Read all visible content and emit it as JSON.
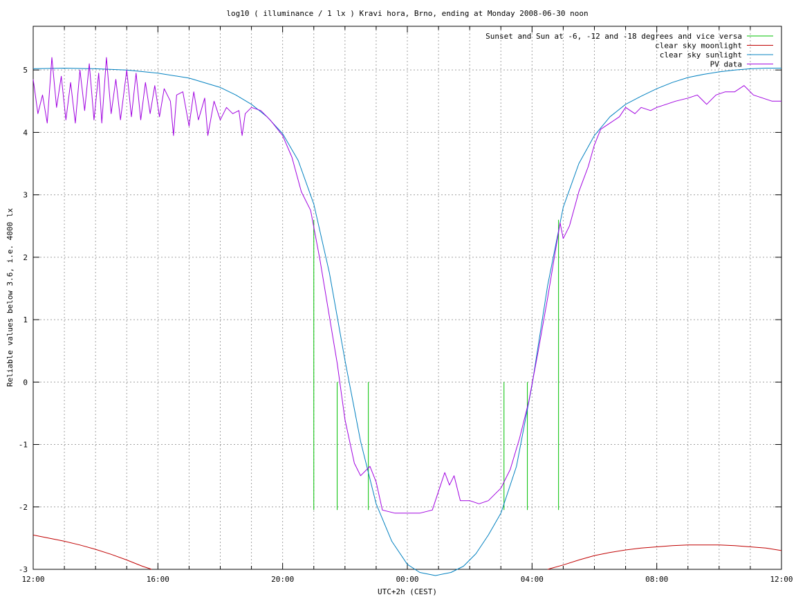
{
  "chart_data": {
    "type": "line",
    "title": "log10 ( illuminance / 1 lx ) Kravi hora, Brno, ending at Monday 2008-06-30 noon",
    "xlabel": "UTC+2h (CEST)",
    "ylabel": "Reliable values below 3.6, i.e. 4000 lx",
    "xlim": [
      0,
      24
    ],
    "ylim": [
      -3,
      5.7
    ],
    "grid": true,
    "legend_position": "top-right",
    "x_ticks": [
      {
        "x": 0,
        "label": "12:00"
      },
      {
        "x": 4,
        "label": "16:00"
      },
      {
        "x": 8,
        "label": "20:00"
      },
      {
        "x": 12,
        "label": "00:00"
      },
      {
        "x": 16,
        "label": "04:00"
      },
      {
        "x": 20,
        "label": "08:00"
      },
      {
        "x": 24,
        "label": "12:00"
      }
    ],
    "x_minor_ticks": [
      1,
      2,
      3,
      5,
      6,
      7,
      9,
      10,
      11,
      13,
      14,
      15,
      17,
      18,
      19,
      21,
      22,
      23
    ],
    "y_ticks": [
      {
        "y": -3,
        "label": "-3"
      },
      {
        "y": -2,
        "label": "-2"
      },
      {
        "y": -1,
        "label": "-1"
      },
      {
        "y": 0,
        "label": "0"
      },
      {
        "y": 1,
        "label": "1"
      },
      {
        "y": 2,
        "label": "2"
      },
      {
        "y": 3,
        "label": "3"
      },
      {
        "y": 4,
        "label": "4"
      },
      {
        "y": 5,
        "label": "5"
      }
    ],
    "series": [
      {
        "name": "Sunset and Sun at -6, -12 and -18 degrees and vice versa",
        "color": "#00c000",
        "style": "impulses",
        "points": [
          [
            9.0,
            2.6
          ],
          [
            9.75,
            0.0
          ],
          [
            10.75,
            0.0
          ],
          [
            15.1,
            0.0
          ],
          [
            15.85,
            0.0
          ],
          [
            16.85,
            2.6
          ]
        ]
      },
      {
        "name": "clear sky moonlight",
        "color": "#c00000",
        "style": "line",
        "segments": [
          [
            [
              0.0,
              -2.45
            ],
            [
              0.5,
              -2.5
            ],
            [
              1.0,
              -2.55
            ],
            [
              1.5,
              -2.61
            ],
            [
              2.0,
              -2.68
            ],
            [
              2.5,
              -2.76
            ],
            [
              3.0,
              -2.85
            ],
            [
              3.5,
              -2.95
            ],
            [
              3.8,
              -3.0
            ]
          ],
          [
            [
              16.5,
              -3.0
            ],
            [
              17.0,
              -2.93
            ],
            [
              17.5,
              -2.85
            ],
            [
              18.0,
              -2.78
            ],
            [
              18.5,
              -2.73
            ],
            [
              19.0,
              -2.69
            ],
            [
              19.5,
              -2.66
            ],
            [
              20.0,
              -2.64
            ],
            [
              20.5,
              -2.62
            ],
            [
              21.0,
              -2.61
            ],
            [
              21.5,
              -2.61
            ],
            [
              22.0,
              -2.61
            ],
            [
              22.5,
              -2.62
            ],
            [
              23.0,
              -2.64
            ],
            [
              23.5,
              -2.66
            ],
            [
              24.0,
              -2.7
            ]
          ]
        ]
      },
      {
        "name": "clear sky sunlight",
        "color": "#0080c0",
        "style": "line",
        "points": [
          [
            0.0,
            5.02
          ],
          [
            1.0,
            5.03
          ],
          [
            2.0,
            5.02
          ],
          [
            3.0,
            5.0
          ],
          [
            4.0,
            4.95
          ],
          [
            5.0,
            4.87
          ],
          [
            6.0,
            4.72
          ],
          [
            6.5,
            4.6
          ],
          [
            7.0,
            4.45
          ],
          [
            7.5,
            4.25
          ],
          [
            8.0,
            3.98
          ],
          [
            8.5,
            3.55
          ],
          [
            9.0,
            2.85
          ],
          [
            9.5,
            1.75
          ],
          [
            10.0,
            0.35
          ],
          [
            10.5,
            -0.95
          ],
          [
            11.0,
            -1.95
          ],
          [
            11.5,
            -2.55
          ],
          [
            12.0,
            -2.92
          ],
          [
            12.4,
            -3.05
          ],
          [
            12.9,
            -3.1
          ],
          [
            13.4,
            -3.05
          ],
          [
            13.8,
            -2.95
          ],
          [
            14.2,
            -2.75
          ],
          [
            14.6,
            -2.45
          ],
          [
            15.0,
            -2.1
          ],
          [
            15.5,
            -1.35
          ],
          [
            16.0,
            -0.05
          ],
          [
            16.5,
            1.55
          ],
          [
            17.0,
            2.8
          ],
          [
            17.5,
            3.5
          ],
          [
            18.0,
            3.95
          ],
          [
            18.5,
            4.25
          ],
          [
            19.0,
            4.45
          ],
          [
            19.5,
            4.58
          ],
          [
            20.0,
            4.7
          ],
          [
            20.5,
            4.8
          ],
          [
            21.0,
            4.88
          ],
          [
            21.5,
            4.93
          ],
          [
            22.0,
            4.97
          ],
          [
            22.5,
            5.0
          ],
          [
            23.0,
            5.02
          ],
          [
            23.5,
            5.03
          ],
          [
            24.0,
            5.03
          ]
        ]
      },
      {
        "name": "PV data",
        "color": "#a000e0",
        "style": "line",
        "points": [
          [
            0.0,
            4.85
          ],
          [
            0.15,
            4.3
          ],
          [
            0.3,
            4.6
          ],
          [
            0.45,
            4.15
          ],
          [
            0.6,
            5.2
          ],
          [
            0.75,
            4.4
          ],
          [
            0.9,
            4.9
          ],
          [
            1.05,
            4.2
          ],
          [
            1.2,
            4.8
          ],
          [
            1.35,
            4.15
          ],
          [
            1.5,
            5.0
          ],
          [
            1.65,
            4.35
          ],
          [
            1.8,
            5.1
          ],
          [
            1.95,
            4.2
          ],
          [
            2.1,
            4.95
          ],
          [
            2.2,
            4.15
          ],
          [
            2.35,
            5.2
          ],
          [
            2.5,
            4.3
          ],
          [
            2.65,
            4.85
          ],
          [
            2.8,
            4.2
          ],
          [
            3.0,
            5.0
          ],
          [
            3.15,
            4.25
          ],
          [
            3.3,
            4.95
          ],
          [
            3.45,
            4.2
          ],
          [
            3.6,
            4.8
          ],
          [
            3.75,
            4.3
          ],
          [
            3.9,
            4.75
          ],
          [
            4.05,
            4.25
          ],
          [
            4.2,
            4.7
          ],
          [
            4.4,
            4.5
          ],
          [
            4.5,
            3.95
          ],
          [
            4.6,
            4.6
          ],
          [
            4.8,
            4.65
          ],
          [
            5.0,
            4.1
          ],
          [
            5.15,
            4.65
          ],
          [
            5.3,
            4.2
          ],
          [
            5.5,
            4.55
          ],
          [
            5.6,
            3.95
          ],
          [
            5.8,
            4.5
          ],
          [
            6.0,
            4.2
          ],
          [
            6.2,
            4.4
          ],
          [
            6.4,
            4.3
          ],
          [
            6.6,
            4.35
          ],
          [
            6.7,
            3.95
          ],
          [
            6.8,
            4.3
          ],
          [
            7.0,
            4.4
          ],
          [
            7.3,
            4.35
          ],
          [
            7.6,
            4.2
          ],
          [
            8.0,
            3.95
          ],
          [
            8.3,
            3.6
          ],
          [
            8.6,
            3.05
          ],
          [
            8.9,
            2.75
          ],
          [
            9.2,
            1.95
          ],
          [
            9.5,
            1.05
          ],
          [
            9.75,
            0.3
          ],
          [
            10.0,
            -0.6
          ],
          [
            10.3,
            -1.3
          ],
          [
            10.5,
            -1.5
          ],
          [
            10.8,
            -1.35
          ],
          [
            11.0,
            -1.6
          ],
          [
            11.2,
            -2.05
          ],
          [
            11.6,
            -2.1
          ],
          [
            12.0,
            -2.1
          ],
          [
            12.4,
            -2.1
          ],
          [
            12.8,
            -2.05
          ],
          [
            13.0,
            -1.75
          ],
          [
            13.2,
            -1.45
          ],
          [
            13.35,
            -1.65
          ],
          [
            13.5,
            -1.5
          ],
          [
            13.7,
            -1.9
          ],
          [
            14.0,
            -1.9
          ],
          [
            14.3,
            -1.95
          ],
          [
            14.6,
            -1.9
          ],
          [
            15.0,
            -1.7
          ],
          [
            15.3,
            -1.4
          ],
          [
            15.6,
            -0.9
          ],
          [
            15.9,
            -0.3
          ],
          [
            16.2,
            0.5
          ],
          [
            16.5,
            1.35
          ],
          [
            16.75,
            2.1
          ],
          [
            16.9,
            2.55
          ],
          [
            17.0,
            2.3
          ],
          [
            17.2,
            2.5
          ],
          [
            17.5,
            3.05
          ],
          [
            17.8,
            3.45
          ],
          [
            18.0,
            3.8
          ],
          [
            18.2,
            4.05
          ],
          [
            18.5,
            4.15
          ],
          [
            18.8,
            4.25
          ],
          [
            19.0,
            4.4
          ],
          [
            19.3,
            4.3
          ],
          [
            19.5,
            4.4
          ],
          [
            19.8,
            4.35
          ],
          [
            20.0,
            4.4
          ],
          [
            20.3,
            4.45
          ],
          [
            20.6,
            4.5
          ],
          [
            21.0,
            4.55
          ],
          [
            21.3,
            4.6
          ],
          [
            21.6,
            4.45
          ],
          [
            21.9,
            4.6
          ],
          [
            22.2,
            4.65
          ],
          [
            22.5,
            4.65
          ],
          [
            22.8,
            4.75
          ],
          [
            23.1,
            4.6
          ],
          [
            23.4,
            4.55
          ],
          [
            23.7,
            4.5
          ],
          [
            24.0,
            4.5
          ]
        ]
      }
    ]
  }
}
